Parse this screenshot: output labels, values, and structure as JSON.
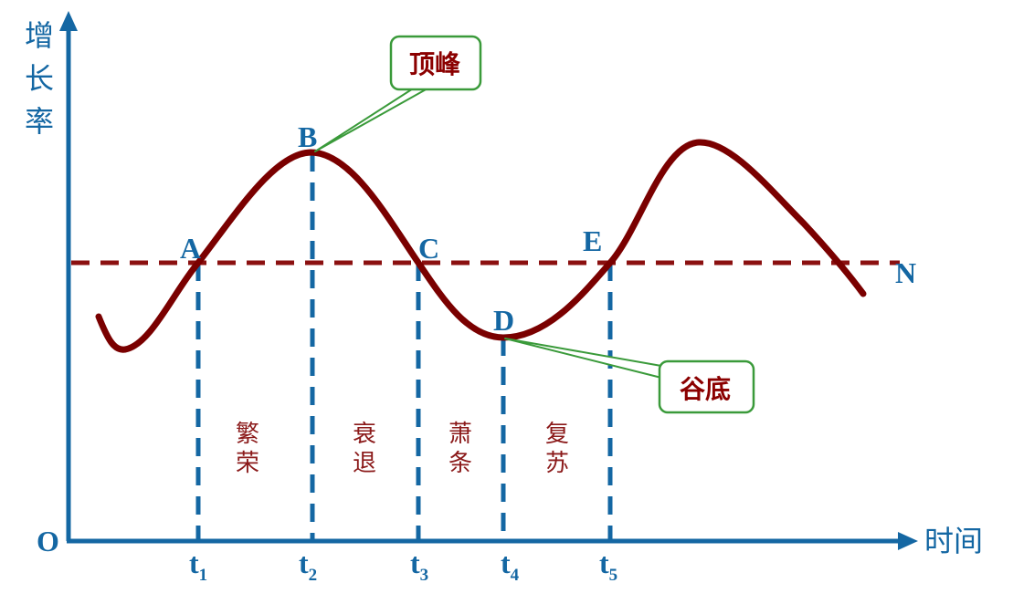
{
  "colors": {
    "axis": "#1467a3",
    "curve": "#7a0000",
    "reference": "#8b1010",
    "callout_border": "#3a9a3a",
    "callout_text": "#8b0000",
    "phase_text": "#8b1a1a"
  },
  "axes": {
    "y_label_chars": [
      "增",
      "长",
      "率"
    ],
    "x_label": "时间",
    "origin": "O"
  },
  "reference_line_label": "N",
  "points": {
    "A": "A",
    "B": "B",
    "C": "C",
    "D": "D",
    "E": "E"
  },
  "time_ticks": [
    {
      "base": "t",
      "sub": "1"
    },
    {
      "base": "t",
      "sub": "2"
    },
    {
      "base": "t",
      "sub": "3"
    },
    {
      "base": "t",
      "sub": "4"
    },
    {
      "base": "t",
      "sub": "5"
    }
  ],
  "phases": [
    {
      "line1": "繁",
      "line2": "荣"
    },
    {
      "line1": "衰",
      "line2": "退"
    },
    {
      "line1": "萧",
      "line2": "条"
    },
    {
      "line1": "复",
      "line2": "苏"
    }
  ],
  "callouts": {
    "peak": "顶峰",
    "trough": "谷底"
  }
}
